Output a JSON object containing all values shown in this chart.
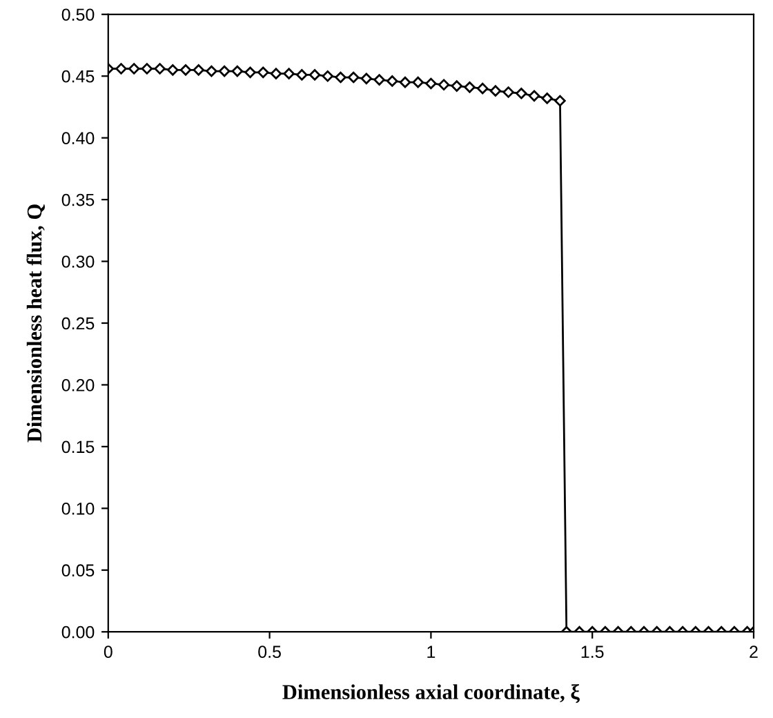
{
  "chart_data": {
    "type": "line",
    "xlabel": "Dimensionless axial coordinate, ξ",
    "ylabel": "Dimensionless heat flux, Q",
    "series": [
      {
        "color": "#000000",
        "x": [
          0,
          0.04,
          0.08,
          0.12,
          0.16,
          0.2,
          0.24,
          0.28,
          0.32,
          0.36,
          0.4,
          0.44,
          0.48,
          0.52,
          0.56,
          0.6,
          0.64,
          0.68,
          0.72,
          0.76,
          0.8,
          0.84,
          0.88,
          0.92,
          0.96,
          1.0,
          1.04,
          1.08,
          1.12,
          1.16,
          1.2,
          1.24,
          1.28,
          1.32,
          1.36,
          1.4,
          1.42,
          1.46,
          1.5,
          1.54,
          1.58,
          1.62,
          1.66,
          1.7,
          1.74,
          1.78,
          1.82,
          1.86,
          1.9,
          1.94,
          1.98,
          2.0
        ],
        "values": [
          0.456,
          0.456,
          0.456,
          0.456,
          0.456,
          0.455,
          0.455,
          0.455,
          0.454,
          0.454,
          0.454,
          0.453,
          0.453,
          0.452,
          0.452,
          0.451,
          0.451,
          0.45,
          0.449,
          0.449,
          0.448,
          0.447,
          0.446,
          0.445,
          0.445,
          0.444,
          0.443,
          0.442,
          0.441,
          0.44,
          0.438,
          0.437,
          0.436,
          0.434,
          0.432,
          0.43,
          0,
          0,
          0,
          0,
          0,
          0,
          0,
          0,
          0,
          0,
          0,
          0,
          0,
          0,
          0,
          0
        ]
      }
    ],
    "marker": "diamond",
    "line_style": "solid",
    "grid": false,
    "xlim": [
      0,
      2
    ],
    "xticks": [
      0,
      0.5,
      1,
      1.5,
      2
    ],
    "ylim": [
      0,
      0.5
    ],
    "yticks": [
      {
        "value": 0,
        "label": "0.00"
      },
      {
        "value": 0.05,
        "label": "0.05"
      },
      {
        "value": 0.1,
        "label": "0.10"
      },
      {
        "value": 0.15,
        "label": "0.15"
      },
      {
        "value": 0.2,
        "label": "0.20"
      },
      {
        "value": 0.25,
        "label": "0.25"
      },
      {
        "value": 0.3,
        "label": "0.30"
      },
      {
        "value": 0.35,
        "label": "0.35"
      },
      {
        "value": 0.4,
        "label": "0.40"
      },
      {
        "value": 0.45,
        "label": "0.45"
      },
      {
        "value": 0.5,
        "label": "0.50"
      }
    ]
  }
}
